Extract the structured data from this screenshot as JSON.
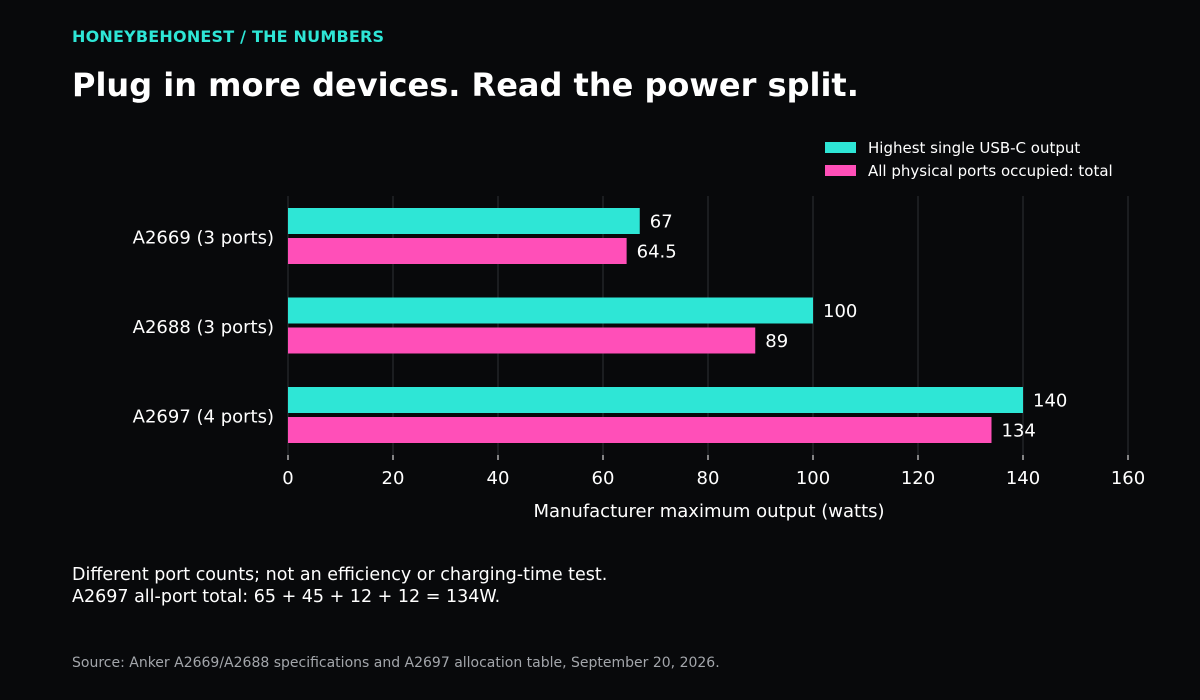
{
  "header": {
    "kicker": "HONEYBEHONEST / THE NUMBERS",
    "title": "Plug in more devices. Read the power split."
  },
  "colors": {
    "background": "#08090b",
    "accent_teal": "#2ee6d6",
    "accent_pink": "#ff4fb8",
    "grid": "#2e3136",
    "text": "#ffffff",
    "muted": "#a3a6ab"
  },
  "chart_data": {
    "type": "bar",
    "orientation": "horizontal",
    "categories": [
      "A2669 (3 ports)",
      "A2688 (3 ports)",
      "A2697 (4 ports)"
    ],
    "series": [
      {
        "name": "Highest single USB-C output",
        "color": "#2ee6d6",
        "values": [
          67,
          100,
          140
        ],
        "labels": [
          "67",
          "100",
          "140"
        ]
      },
      {
        "name": "All physical ports occupied: total",
        "color": "#ff4fb8",
        "values": [
          64.5,
          89,
          134
        ],
        "labels": [
          "64.5",
          "89",
          "134"
        ]
      }
    ],
    "xlabel": "Manufacturer maximum output (watts)",
    "ylabel": "",
    "xlim": [
      0,
      160
    ],
    "xticks": [
      0,
      20,
      40,
      60,
      80,
      100,
      120,
      140,
      160
    ],
    "grid": "vertical",
    "legend": "top-right"
  },
  "notes": [
    "Different port counts; not an efficiency or charging-time test.",
    "A2697 all-port total: 65 + 45 + 12 + 12 = 134W."
  ],
  "source": "Source: Anker A2669/A2688 specifications and A2697 allocation table, September 20, 2026."
}
